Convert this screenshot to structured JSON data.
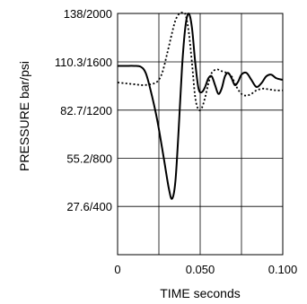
{
  "chart_data": {
    "type": "line",
    "title": "",
    "xlabel": "TIME seconds",
    "ylabel": "PRESSURE bar/psi",
    "xlim": [
      0,
      0.1
    ],
    "ylim": [
      0,
      138
    ],
    "grid": true,
    "x_ticks": [
      {
        "value": 0,
        "label": "0"
      },
      {
        "value": 0.05,
        "label": "0.050"
      },
      {
        "value": 0.1,
        "label": "0.100"
      }
    ],
    "y_ticks": [
      {
        "value": 27.6,
        "label": "27.6/400"
      },
      {
        "value": 55.2,
        "label": "55.2/800"
      },
      {
        "value": 82.7,
        "label": "82.7/1200"
      },
      {
        "value": 110.3,
        "label": "110.3/1600"
      },
      {
        "value": 138,
        "label": "138/2000"
      }
    ],
    "grid_x": [
      0.025,
      0.05,
      0.075
    ],
    "series": [
      {
        "style": "solid",
        "x": [
          0,
          0.005,
          0.01,
          0.014,
          0.017,
          0.02,
          0.024,
          0.028,
          0.031,
          0.033,
          0.035,
          0.037,
          0.039,
          0.041,
          0.043,
          0.045,
          0.047,
          0.049,
          0.051,
          0.053,
          0.055,
          0.057,
          0.059,
          0.061,
          0.063,
          0.065,
          0.067,
          0.069,
          0.071,
          0.073,
          0.075,
          0.078,
          0.081,
          0.084,
          0.087,
          0.09,
          0.093,
          0.096,
          0.1
        ],
        "values": [
          108,
          108,
          108,
          107.5,
          104,
          94,
          77,
          55,
          38,
          32,
          42,
          72,
          107,
          130,
          138,
          130,
          110,
          95,
          93,
          96,
          101,
          102,
          97,
          92,
          95,
          102,
          104,
          101,
          97,
          99,
          103,
          104,
          100,
          96,
          98,
          102,
          103,
          101,
          100
        ]
      },
      {
        "style": "dotted",
        "x": [
          0,
          0.005,
          0.01,
          0.015,
          0.02,
          0.024,
          0.027,
          0.03,
          0.033,
          0.035,
          0.037,
          0.039,
          0.041,
          0.043,
          0.045,
          0.047,
          0.049,
          0.051,
          0.053,
          0.055,
          0.057,
          0.06,
          0.063,
          0.066,
          0.069,
          0.072,
          0.075,
          0.078,
          0.081,
          0.084,
          0.088,
          0.092,
          0.096,
          0.1
        ],
        "values": [
          98.5,
          98,
          97.5,
          97,
          97.5,
          99,
          104,
          115,
          127,
          134,
          137.5,
          138.5,
          137.5,
          128,
          110,
          90,
          83,
          84,
          90,
          98,
          104,
          106,
          105,
          104,
          102,
          96,
          92,
          91,
          92,
          94,
          95,
          94.5,
          94,
          94
        ]
      }
    ]
  }
}
